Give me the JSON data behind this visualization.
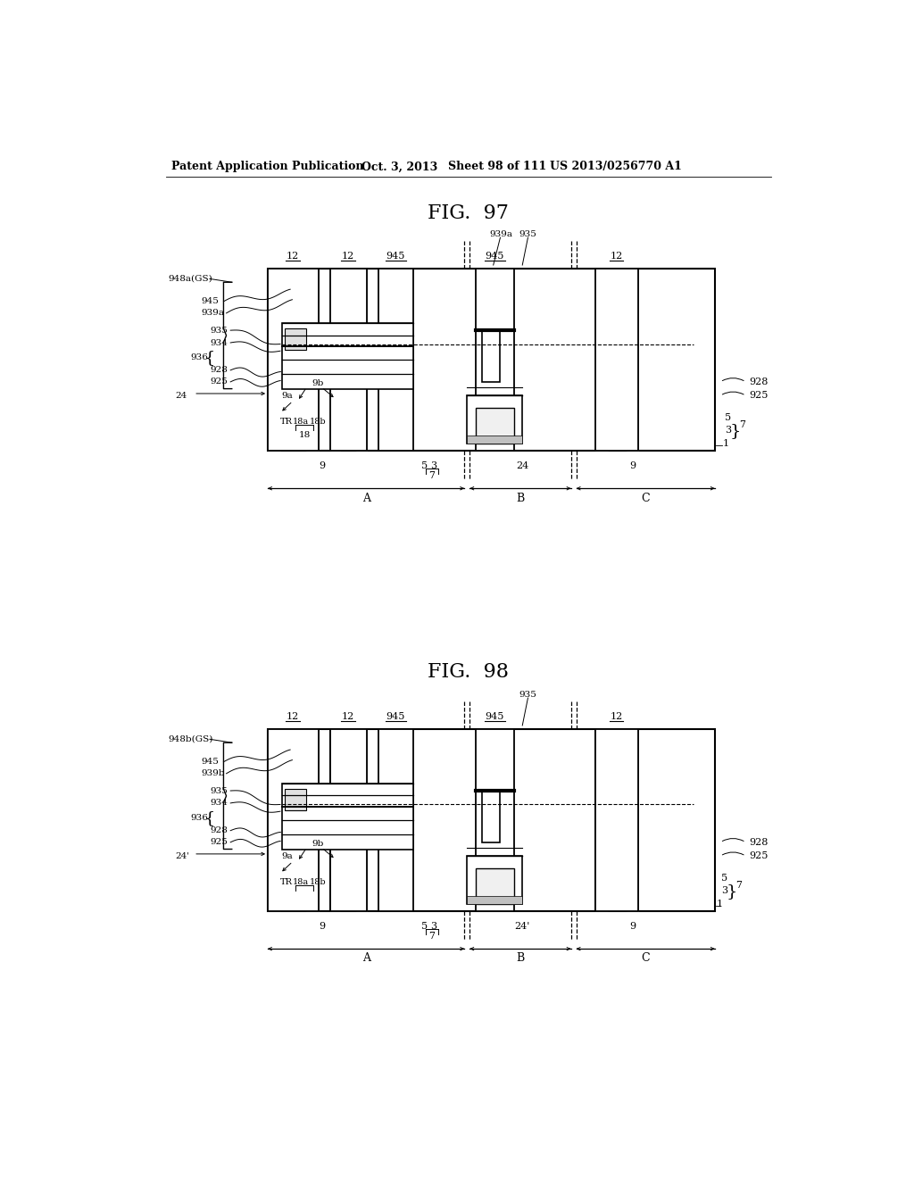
{
  "bg": "#ffffff",
  "lc": "#000000",
  "header_left": "Patent Application Publication",
  "header_mid1": "Oct. 3, 2013",
  "header_mid2": "Sheet 98 of 111",
  "header_right": "US 2013/0256770 A1",
  "fig97_title": "FIG.  97",
  "fig98_title": "FIG.  98",
  "note": "All coordinates in matplotlib pixel space (0,0=bottom-left, 1024x1320)"
}
